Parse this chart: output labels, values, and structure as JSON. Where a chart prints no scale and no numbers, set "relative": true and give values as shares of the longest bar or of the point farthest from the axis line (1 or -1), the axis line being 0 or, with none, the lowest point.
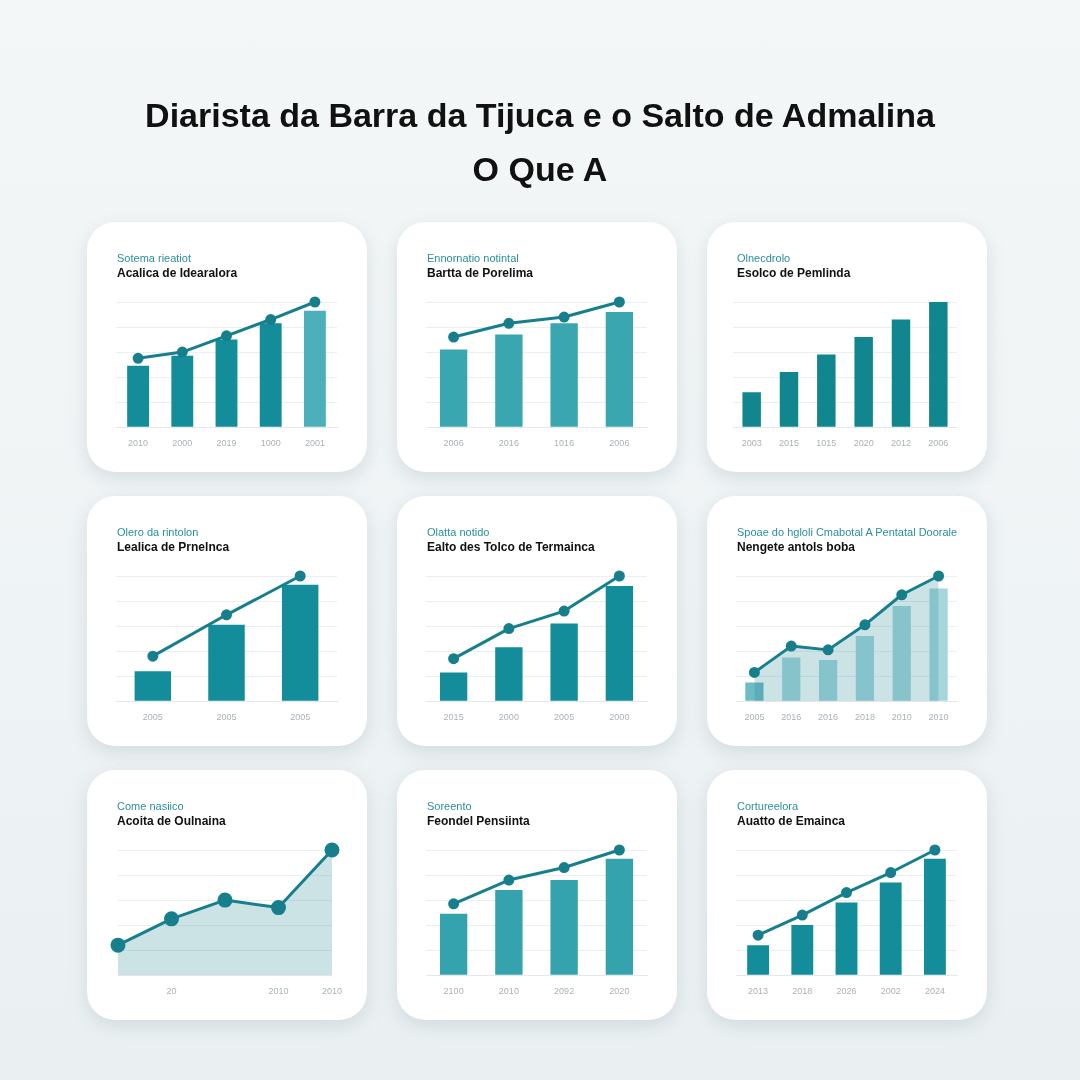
{
  "chart_data": [
    {
      "type": "other",
      "title": "Diarista da Barra da Tijuca e o Salto de Admalina",
      "subtitle": "O Que A"
    },
    {
      "type": "bar",
      "subtitle": "Sotema rieatiot",
      "title": "Acalica de Idearalora",
      "categories": [
        "2010",
        "2000",
        "2019",
        "1000",
        "2001"
      ],
      "relative": true,
      "grid": "y",
      "tick_labels": "x",
      "marker": "circle",
      "series": [
        {
          "type": "bar",
          "colors": [
            "#138d99",
            "#138d99",
            "#138d99",
            "#138d99",
            "#4bb0ba"
          ],
          "values": [
            0.49,
            0.57,
            0.7,
            0.83,
            0.93
          ]
        },
        {
          "type": "line",
          "color": "#177f8c",
          "values": [
            0.55,
            0.6,
            0.73,
            0.86,
            1
          ]
        }
      ]
    },
    {
      "type": "bar",
      "subtitle": "Ennornatio notintal",
      "title": "Bartta de Porelima",
      "categories": [
        "2006",
        "2016",
        "1016",
        "2006"
      ],
      "relative": true,
      "grid": "y",
      "tick_labels": "x",
      "marker": "circle",
      "series": [
        {
          "type": "bar",
          "color": "#3aa6b0",
          "values": [
            0.62,
            0.74,
            0.83,
            0.92
          ]
        },
        {
          "type": "line",
          "color": "#177f8c",
          "values": [
            0.72,
            0.83,
            0.88,
            1
          ]
        }
      ]
    },
    {
      "type": "bar",
      "subtitle": "Olnecdrolo",
      "title": "Esolco de Pemlinda",
      "categories": [
        "2003",
        "2015",
        "1015",
        "2020",
        "2012",
        "2006"
      ],
      "relative": true,
      "grid": "y",
      "tick_labels": "x",
      "series": [
        {
          "type": "bar",
          "color": "#11868f",
          "values": [
            0.28,
            0.44,
            0.58,
            0.72,
            0.86,
            1
          ]
        }
      ]
    },
    {
      "type": "bar",
      "subtitle": "Olero da rintolon",
      "title": "Lealica de Prnelnca",
      "categories": [
        "2005",
        "2005",
        "2005"
      ],
      "relative": true,
      "grid": "y",
      "tick_labels": "x",
      "marker": "circle",
      "series": [
        {
          "type": "bar",
          "color": "#138d99",
          "values": [
            0.24,
            0.61,
            0.93
          ]
        },
        {
          "type": "line",
          "color": "#177f8c",
          "values": [
            0.36,
            0.69,
            1
          ]
        }
      ]
    },
    {
      "type": "bar",
      "subtitle": "Olatta notido",
      "title": "Ealto des Tolco de Termainca",
      "categories": [
        "2015",
        "2000",
        "2005",
        "2000"
      ],
      "relative": true,
      "grid": "y",
      "tick_labels": "x",
      "marker": "circle",
      "series": [
        {
          "type": "bar",
          "color": "#138d99",
          "values": [
            0.23,
            0.43,
            0.62,
            0.92
          ]
        },
        {
          "type": "line",
          "color": "#177f8c",
          "values": [
            0.34,
            0.58,
            0.72,
            1
          ]
        }
      ]
    },
    {
      "type": "bar",
      "subtitle": "Spoae do hgloli Cmabotal A Pentatal Doorale",
      "title": "Nengete antols boba",
      "categories": [
        "2005",
        "2016",
        "2016",
        "2018",
        "2010",
        "2010"
      ],
      "relative": true,
      "grid": "y",
      "tick_labels": "x",
      "marker": "circle",
      "series": [
        {
          "type": "bar",
          "colors": [
            "#6cbcc5",
            "#a6d6dc",
            "#a6d6dc",
            "#a6d6dc",
            "#a6d6dc",
            "#a6d6dc"
          ],
          "values": [
            0.15,
            0.35,
            0.33,
            0.52,
            0.76,
            0.9
          ]
        },
        {
          "type": "area",
          "color": "#177f8c",
          "values": [
            0.23,
            0.44,
            0.41,
            0.61,
            0.85,
            1
          ]
        }
      ]
    },
    {
      "type": "area",
      "subtitle": "Come nasiico",
      "title": "Acoita de Oulnaina",
      "categories": [
        null,
        "20",
        null,
        "2010",
        "2010"
      ],
      "relative": true,
      "grid": "y",
      "tick_labels": "x",
      "marker": "circle",
      "series": [
        {
          "type": "area",
          "color": "#177f8c",
          "values": [
            0.24,
            0.45,
            0.6,
            0.54,
            1
          ]
        }
      ]
    },
    {
      "type": "bar",
      "subtitle": "Soreento",
      "title": "Feondel Pensiinta",
      "categories": [
        "2100",
        "2010",
        "2092",
        "2020"
      ],
      "relative": true,
      "grid": "y",
      "tick_labels": "x",
      "marker": "circle",
      "series": [
        {
          "type": "bar",
          "color": "#35a3ad",
          "values": [
            0.49,
            0.68,
            0.76,
            0.93
          ]
        },
        {
          "type": "line",
          "color": "#177f8c",
          "values": [
            0.57,
            0.76,
            0.86,
            1
          ]
        }
      ]
    },
    {
      "type": "bar",
      "subtitle": "Cortureelora",
      "title": "Auatto de Emainca",
      "categories": [
        "2013",
        "2018",
        "2026",
        "2002",
        "2024"
      ],
      "relative": true,
      "grid": "y",
      "tick_labels": "x",
      "marker": "circle",
      "series": [
        {
          "type": "bar",
          "color": "#138d99",
          "values": [
            0.24,
            0.4,
            0.58,
            0.74,
            0.93
          ]
        },
        {
          "type": "line",
          "color": "#177f8c",
          "values": [
            0.32,
            0.48,
            0.66,
            0.82,
            1
          ]
        }
      ]
    }
  ]
}
